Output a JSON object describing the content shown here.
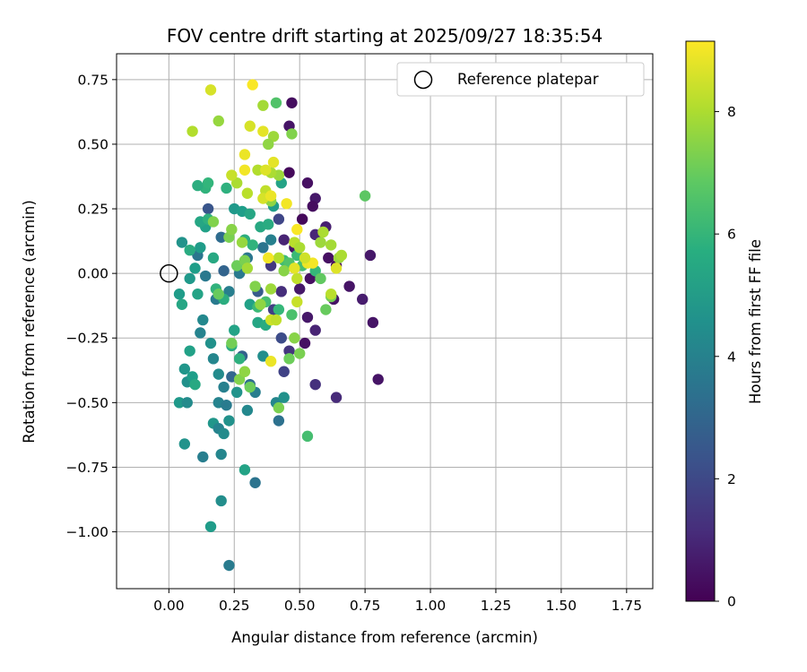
{
  "chart_data": {
    "type": "scatter",
    "title": "FOV centre drift starting at 2025/09/27 18:35:54",
    "xlabel": "Angular distance from reference (arcmin)",
    "ylabel": "Rotation from reference (arcmin)",
    "xlim": [
      -0.2,
      1.85
    ],
    "ylim": [
      -1.22,
      0.85
    ],
    "xticks": [
      0.0,
      0.25,
      0.5,
      0.75,
      1.0,
      1.25,
      1.5,
      1.75
    ],
    "xtick_labels": [
      "0.00",
      "0.25",
      "0.50",
      "0.75",
      "1.00",
      "1.25",
      "1.50",
      "1.75"
    ],
    "yticks": [
      0.75,
      0.5,
      0.25,
      0.0,
      -0.25,
      -0.5,
      -0.75,
      -1.0
    ],
    "ytick_labels": [
      "0.75",
      "0.50",
      "0.25",
      "0.00",
      "−0.25",
      "−0.50",
      "−0.75",
      "−1.00"
    ],
    "grid": true,
    "legend": {
      "position": "top-right",
      "entries": [
        "Reference platepar"
      ]
    },
    "reference_point": {
      "x": 0.0,
      "y": 0.0,
      "label": "Reference platepar"
    },
    "colorbar": {
      "label": "Hours from first FF file",
      "range": [
        0,
        9.15
      ],
      "ticks": [
        0,
        2,
        4,
        6,
        8
      ],
      "tick_labels": [
        "0",
        "2",
        "4",
        "6",
        "8"
      ],
      "colormap": "viridis"
    },
    "series": [
      {
        "name": "FOV centre drift",
        "points": [
          [
            0.47,
            0.66,
            0.3
          ],
          [
            0.46,
            0.57,
            0.5
          ],
          [
            0.46,
            0.39,
            0.2
          ],
          [
            0.53,
            0.35,
            0.4
          ],
          [
            0.56,
            0.29,
            0.6
          ],
          [
            0.55,
            0.26,
            0.3
          ],
          [
            0.51,
            0.21,
            0.2
          ],
          [
            0.6,
            0.18,
            0.8
          ],
          [
            0.56,
            0.15,
            1.0
          ],
          [
            0.44,
            0.13,
            0.9
          ],
          [
            0.48,
            0.1,
            0.5
          ],
          [
            0.61,
            0.06,
            0.4
          ],
          [
            0.64,
            0.03,
            0.3
          ],
          [
            0.77,
            0.07,
            0.6
          ],
          [
            0.69,
            -0.05,
            0.5
          ],
          [
            0.54,
            -0.02,
            0.4
          ],
          [
            0.5,
            -0.06,
            0.6
          ],
          [
            0.63,
            -0.1,
            0.5
          ],
          [
            0.74,
            -0.1,
            0.7
          ],
          [
            0.53,
            -0.17,
            0.6
          ],
          [
            0.56,
            -0.22,
            0.9
          ],
          [
            0.52,
            -0.27,
            0.4
          ],
          [
            0.78,
            -0.19,
            0.5
          ],
          [
            0.8,
            -0.41,
            0.5
          ],
          [
            0.64,
            -0.48,
            1.1
          ],
          [
            0.56,
            -0.43,
            1.3
          ],
          [
            0.44,
            -0.38,
            1.8
          ],
          [
            0.46,
            -0.3,
            1.4
          ],
          [
            0.43,
            -0.25,
            2.1
          ],
          [
            0.4,
            -0.14,
            1.7
          ],
          [
            0.43,
            -0.07,
            1.2
          ],
          [
            0.39,
            0.03,
            1.5
          ],
          [
            0.42,
            0.21,
            1.9
          ],
          [
            0.15,
            0.25,
            2.4
          ],
          [
            0.34,
            -0.07,
            2.6
          ],
          [
            0.28,
            -0.32,
            2.8
          ],
          [
            0.24,
            -0.4,
            3.0
          ],
          [
            0.31,
            -0.43,
            3.3
          ],
          [
            0.42,
            -0.57,
            3.4
          ],
          [
            0.33,
            -0.81,
            3.5
          ],
          [
            0.11,
            0.07,
            3.6
          ],
          [
            0.14,
            -0.01,
            3.7
          ],
          [
            0.18,
            -0.1,
            3.8
          ],
          [
            0.23,
            -0.07,
            3.9
          ],
          [
            0.27,
            0.0,
            3.7
          ],
          [
            0.3,
            0.06,
            3.6
          ],
          [
            0.36,
            0.1,
            3.5
          ],
          [
            0.39,
            0.13,
            4.0
          ],
          [
            0.2,
            0.14,
            3.2
          ],
          [
            0.21,
            0.01,
            2.9
          ],
          [
            0.12,
            -0.23,
            4.1
          ],
          [
            0.13,
            -0.18,
            4.3
          ],
          [
            0.16,
            -0.27,
            4.6
          ],
          [
            0.17,
            -0.33,
            4.2
          ],
          [
            0.19,
            -0.39,
            4.4
          ],
          [
            0.21,
            -0.44,
            4.0
          ],
          [
            0.19,
            -0.5,
            4.1
          ],
          [
            0.22,
            -0.51,
            3.8
          ],
          [
            0.26,
            -0.46,
            4.7
          ],
          [
            0.3,
            -0.53,
            4.3
          ],
          [
            0.33,
            -0.46,
            3.9
          ],
          [
            0.36,
            -0.32,
            4.5
          ],
          [
            0.41,
            -0.5,
            4.2
          ],
          [
            0.44,
            -0.48,
            4.6
          ],
          [
            0.17,
            -0.58,
            4.8
          ],
          [
            0.19,
            -0.6,
            4.1
          ],
          [
            0.21,
            -0.62,
            4.4
          ],
          [
            0.23,
            -0.57,
            4.6
          ],
          [
            0.13,
            -0.71,
            3.9
          ],
          [
            0.2,
            -0.7,
            4.2
          ],
          [
            0.2,
            -0.88,
            4.5
          ],
          [
            0.16,
            -0.98,
            5.0
          ],
          [
            0.23,
            -1.13,
            3.8
          ],
          [
            0.29,
            -0.76,
            5.3
          ],
          [
            0.06,
            -0.66,
            4.7
          ],
          [
            0.04,
            -0.5,
            4.9
          ],
          [
            0.07,
            -0.5,
            4.4
          ],
          [
            0.07,
            -0.42,
            4.6
          ],
          [
            0.06,
            -0.37,
            4.8
          ],
          [
            0.09,
            -0.4,
            5.1
          ],
          [
            0.1,
            -0.43,
            5.5
          ],
          [
            0.08,
            -0.3,
            5.2
          ],
          [
            0.04,
            -0.08,
            5.0
          ],
          [
            0.05,
            -0.12,
            5.4
          ],
          [
            0.08,
            -0.02,
            4.9
          ],
          [
            0.1,
            0.02,
            5.1
          ],
          [
            0.11,
            -0.08,
            5.3
          ],
          [
            0.05,
            0.12,
            4.7
          ],
          [
            0.08,
            0.09,
            5.6
          ],
          [
            0.12,
            0.1,
            5.0
          ],
          [
            0.14,
            0.18,
            5.2
          ],
          [
            0.12,
            0.2,
            5.4
          ],
          [
            0.15,
            0.21,
            5.8
          ],
          [
            0.17,
            0.06,
            5.5
          ],
          [
            0.18,
            -0.06,
            5.9
          ],
          [
            0.21,
            -0.1,
            5.7
          ],
          [
            0.25,
            -0.22,
            5.3
          ],
          [
            0.24,
            -0.28,
            5.6
          ],
          [
            0.27,
            -0.33,
            5.8
          ],
          [
            0.25,
            0.25,
            4.9
          ],
          [
            0.28,
            0.24,
            5.1
          ],
          [
            0.31,
            0.23,
            5.4
          ],
          [
            0.29,
            0.13,
            5.7
          ],
          [
            0.32,
            0.11,
            5.9
          ],
          [
            0.35,
            0.18,
            5.5
          ],
          [
            0.38,
            0.19,
            5.6
          ],
          [
            0.4,
            0.26,
            5.0
          ],
          [
            0.43,
            0.35,
            5.3
          ],
          [
            0.22,
            0.33,
            5.8
          ],
          [
            0.14,
            0.33,
            5.9
          ],
          [
            0.15,
            0.35,
            6.0
          ],
          [
            0.11,
            0.34,
            5.7
          ],
          [
            0.31,
            -0.12,
            5.2
          ],
          [
            0.34,
            -0.19,
            5.4
          ],
          [
            0.37,
            -0.2,
            5.6
          ],
          [
            0.34,
            -0.13,
            6.2
          ],
          [
            0.37,
            -0.11,
            6.4
          ],
          [
            0.42,
            -0.14,
            6.1
          ],
          [
            0.47,
            -0.16,
            6.5
          ],
          [
            0.44,
            0.05,
            6.3
          ],
          [
            0.46,
            0.04,
            6.6
          ],
          [
            0.49,
            0.07,
            6.2
          ],
          [
            0.52,
            0.05,
            6.8
          ],
          [
            0.51,
            0.03,
            6.4
          ],
          [
            0.56,
            0.01,
            6.1
          ],
          [
            0.58,
            -0.02,
            6.9
          ],
          [
            0.6,
            -0.14,
            7.0
          ],
          [
            0.62,
            -0.09,
            7.2
          ],
          [
            0.53,
            -0.63,
            6.4
          ],
          [
            0.75,
            0.3,
            6.8
          ],
          [
            0.41,
            0.66,
            6.6
          ],
          [
            0.42,
            -0.52,
            7.3
          ],
          [
            0.46,
            -0.33,
            7.1
          ],
          [
            0.48,
            -0.25,
            7.5
          ],
          [
            0.5,
            -0.31,
            7.3
          ],
          [
            0.27,
            -0.41,
            7.4
          ],
          [
            0.29,
            -0.38,
            7.6
          ],
          [
            0.31,
            -0.44,
            7.1
          ],
          [
            0.24,
            -0.27,
            7.2
          ],
          [
            0.19,
            -0.08,
            7.0
          ],
          [
            0.26,
            0.03,
            7.1
          ],
          [
            0.29,
            0.05,
            7.3
          ],
          [
            0.33,
            -0.05,
            7.4
          ],
          [
            0.35,
            -0.12,
            7.6
          ],
          [
            0.39,
            -0.06,
            7.8
          ],
          [
            0.23,
            0.14,
            7.3
          ],
          [
            0.24,
            0.17,
            7.5
          ],
          [
            0.28,
            0.12,
            7.7
          ],
          [
            0.3,
            0.02,
            7.9
          ],
          [
            0.17,
            0.2,
            7.4
          ],
          [
            0.39,
            0.28,
            7.6
          ],
          [
            0.42,
            0.38,
            7.8
          ],
          [
            0.44,
            0.01,
            7.5
          ],
          [
            0.47,
            0.54,
            7.4
          ],
          [
            0.4,
            0.53,
            7.8
          ],
          [
            0.38,
            0.5,
            7.6
          ],
          [
            0.36,
            0.65,
            7.9
          ],
          [
            0.19,
            0.59,
            7.7
          ],
          [
            0.09,
            0.55,
            8.1
          ],
          [
            0.26,
            0.35,
            8.0
          ],
          [
            0.3,
            0.31,
            8.2
          ],
          [
            0.34,
            0.4,
            8.1
          ],
          [
            0.37,
            0.32,
            8.3
          ],
          [
            0.39,
            0.39,
            8.0
          ],
          [
            0.42,
            0.06,
            8.1
          ],
          [
            0.48,
            0.12,
            8.2
          ],
          [
            0.5,
            0.1,
            8.0
          ],
          [
            0.58,
            0.12,
            7.8
          ],
          [
            0.59,
            0.16,
            8.0
          ],
          [
            0.62,
            0.11,
            7.9
          ],
          [
            0.65,
            0.06,
            7.8
          ],
          [
            0.66,
            0.07,
            8.0
          ],
          [
            0.62,
            -0.08,
            8.2
          ],
          [
            0.49,
            -0.02,
            8.3
          ],
          [
            0.49,
            -0.11,
            8.4
          ],
          [
            0.39,
            -0.18,
            8.5
          ],
          [
            0.41,
            -0.18,
            8.3
          ],
          [
            0.31,
            0.57,
            8.6
          ],
          [
            0.36,
            0.55,
            8.8
          ],
          [
            0.29,
            0.46,
            8.9
          ],
          [
            0.29,
            0.4,
            9.0
          ],
          [
            0.37,
            0.4,
            8.7
          ],
          [
            0.4,
            0.43,
            8.8
          ],
          [
            0.36,
            0.29,
            8.6
          ],
          [
            0.39,
            0.3,
            8.9
          ],
          [
            0.45,
            0.27,
            9.0
          ],
          [
            0.49,
            0.17,
            9.1
          ],
          [
            0.53,
            0.04,
            8.9
          ],
          [
            0.55,
            0.04,
            9.0
          ],
          [
            0.48,
            0.02,
            8.8
          ],
          [
            0.38,
            0.06,
            9.0
          ],
          [
            0.64,
            0.02,
            8.7
          ],
          [
            0.39,
            -0.34,
            8.9
          ],
          [
            0.16,
            0.71,
            8.6
          ],
          [
            0.32,
            0.73,
            9.1
          ],
          [
            0.24,
            0.38,
            8.4
          ],
          [
            0.52,
            0.06,
            8.5
          ]
        ]
      }
    ]
  }
}
